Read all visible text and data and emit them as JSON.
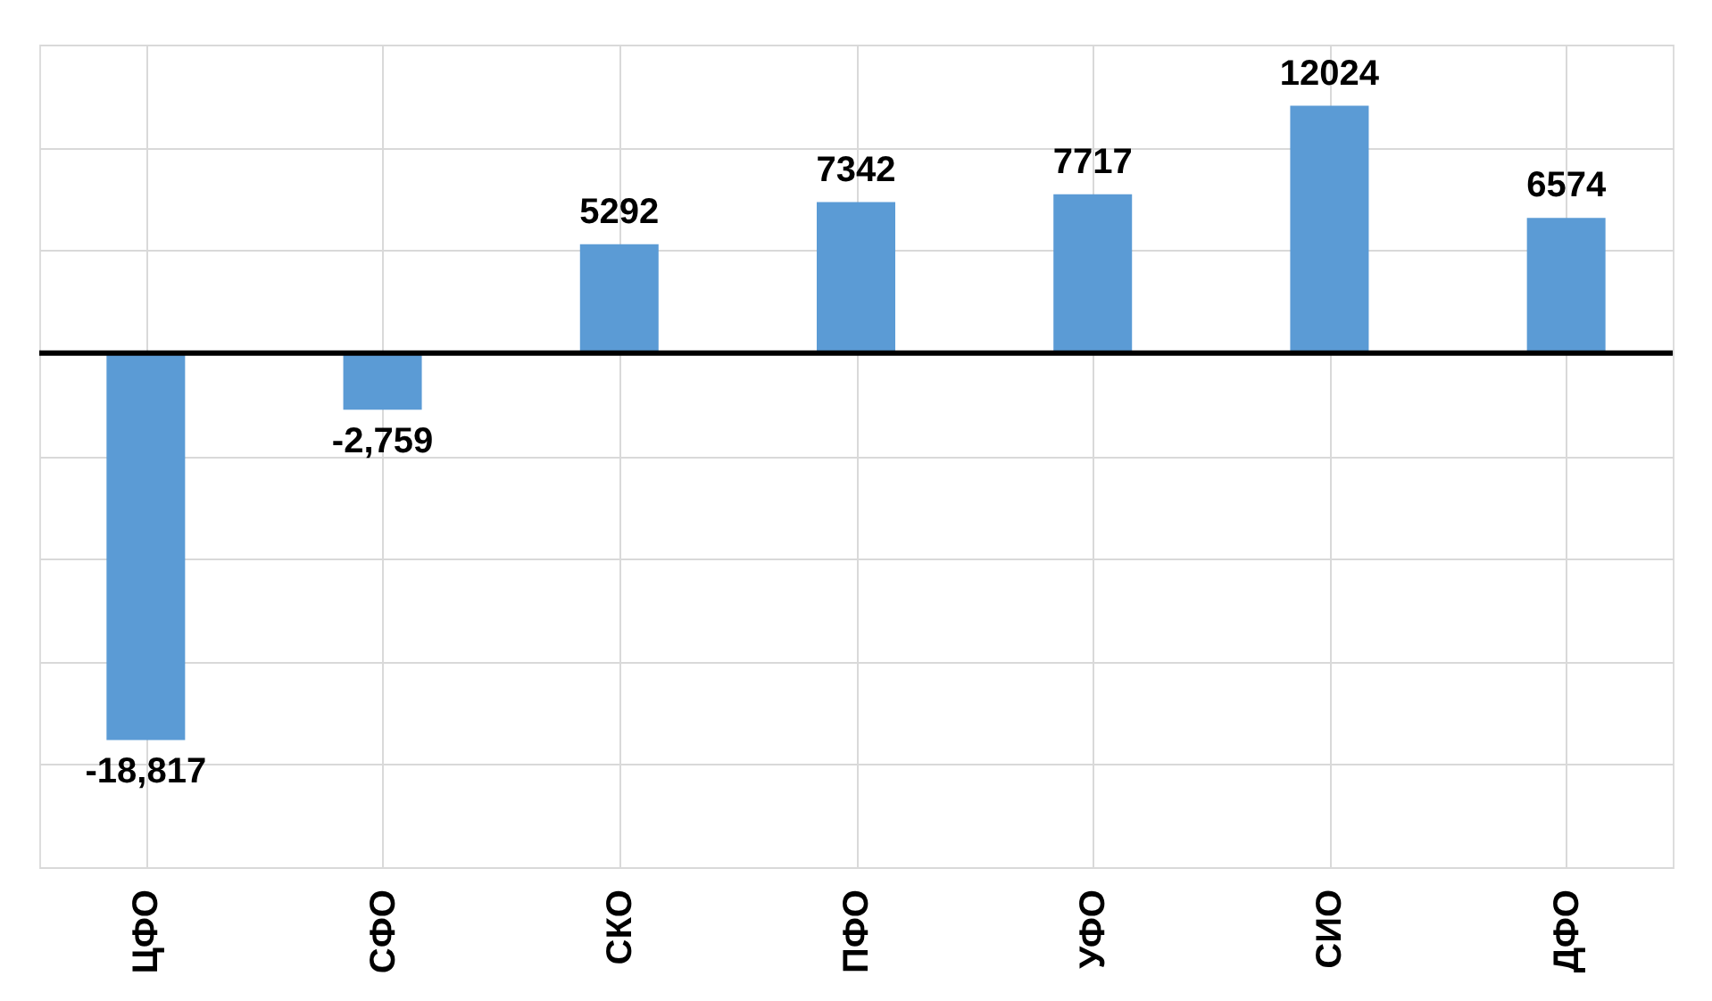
{
  "chart_data": {
    "type": "bar",
    "categories": [
      "ЦФО",
      "СФО",
      "СКО",
      "ПФО",
      "УФО",
      "СИО",
      "ДФО"
    ],
    "values": [
      -18817,
      -2759,
      5292,
      7342,
      7717,
      12024,
      6574
    ],
    "value_labels": [
      "-18,817",
      "-2,759",
      "5292",
      "7342",
      "7717",
      "12024",
      "6574"
    ],
    "color": "#5b9bd5",
    "ylim": [
      -25000,
      15000
    ],
    "yticks": [
      {
        "value": -25000,
        "label": null
      },
      {
        "value": -20000,
        "label": null
      },
      {
        "value": -15000,
        "label": null
      },
      {
        "value": -10000,
        "label": null
      },
      {
        "value": -5000,
        "label": null
      },
      {
        "value": 0,
        "label": null
      },
      {
        "value": 5000,
        "label": null
      },
      {
        "value": 10000,
        "label": null
      },
      {
        "value": 15000,
        "label": null
      }
    ],
    "grid": true,
    "tick_labels": "x"
  }
}
